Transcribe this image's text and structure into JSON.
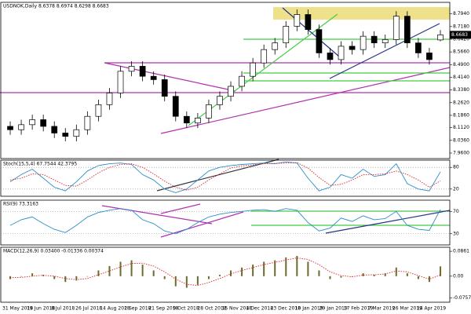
{
  "chart_data": [
    {
      "type": "candlestick",
      "title": "USDNOK,Daily 8.6378 8.6974 8.6298 8.6683",
      "open": [
        8.12,
        8.1,
        8.13,
        8.16,
        8.12,
        8.08,
        8.06,
        8.1,
        8.18,
        8.25,
        8.32,
        8.45,
        8.48,
        8.42,
        8.4,
        8.3,
        8.18,
        8.14,
        8.17,
        8.25,
        8.3,
        8.36,
        8.42,
        8.5,
        8.58,
        8.62,
        8.72,
        8.79,
        8.7,
        8.56,
        8.52,
        8.6,
        8.58,
        8.66,
        8.62,
        8.64,
        8.78,
        8.62,
        8.56,
        8.6378
      ],
      "high": [
        8.15,
        8.16,
        8.19,
        8.19,
        8.15,
        8.11,
        8.13,
        8.21,
        8.28,
        8.35,
        8.48,
        8.51,
        8.51,
        8.45,
        8.43,
        8.33,
        8.21,
        8.2,
        8.28,
        8.33,
        8.39,
        8.45,
        8.53,
        8.61,
        8.65,
        8.75,
        8.82,
        8.82,
        8.73,
        8.59,
        8.63,
        8.63,
        8.69,
        8.69,
        8.67,
        8.81,
        8.81,
        8.65,
        8.59,
        8.6974
      ],
      "low": [
        8.07,
        8.07,
        8.1,
        8.09,
        8.05,
        8.03,
        8.03,
        8.07,
        8.15,
        8.22,
        8.29,
        8.42,
        8.39,
        8.37,
        8.27,
        8.15,
        8.11,
        8.11,
        8.14,
        8.22,
        8.27,
        8.33,
        8.39,
        8.47,
        8.55,
        8.59,
        8.69,
        8.67,
        8.53,
        8.49,
        8.49,
        8.55,
        8.55,
        8.59,
        8.59,
        8.61,
        8.59,
        8.53,
        8.49,
        8.6298
      ],
      "close": [
        8.1,
        8.13,
        8.16,
        8.12,
        8.08,
        8.06,
        8.1,
        8.18,
        8.25,
        8.32,
        8.45,
        8.48,
        8.42,
        8.4,
        8.3,
        8.18,
        8.14,
        8.17,
        8.25,
        8.3,
        8.36,
        8.42,
        8.5,
        8.58,
        8.62,
        8.72,
        8.79,
        8.7,
        8.56,
        8.52,
        8.6,
        8.58,
        8.66,
        8.62,
        8.64,
        8.78,
        8.62,
        8.56,
        8.52,
        8.6683
      ],
      "up_color": "#ffffff",
      "down_color": "#000000",
      "last_price_label": "8.6683",
      "ylim": [
        7.927,
        8.863
      ],
      "yticks": [
        {
          "value": 8.794,
          "label": "8.7940"
        },
        {
          "value": 8.718,
          "label": "8.7180"
        },
        {
          "value": 8.642,
          "label": "8.6420"
        },
        {
          "value": 8.566,
          "label": "8.5660"
        },
        {
          "value": 8.49,
          "label": "8.4900"
        },
        {
          "value": 8.414,
          "label": "8.4140"
        },
        {
          "value": 8.338,
          "label": "8.3380"
        },
        {
          "value": 8.262,
          "label": "8.2620"
        },
        {
          "value": 8.186,
          "label": "8.1860"
        },
        {
          "value": 8.112,
          "label": "8.1120"
        },
        {
          "value": 8.036,
          "label": "8.0360"
        },
        {
          "value": 7.96,
          "label": "7.9600"
        }
      ],
      "grid": false,
      "x_labels": [
        "31 May 2018",
        "19 Jun 2018",
        "8 Jul 2018",
        "26 Jul 2018",
        "14 Aug 2018",
        "2 Sep 2018",
        "21 Sep 2018",
        "9 Oct 2018",
        "28 Oct 2018",
        "15 Nov 2018",
        "4 Dec 2018",
        "23 Dec 2018",
        "10 Jan 2019",
        "29 Jan 2019",
        "17 Feb 2019",
        "7 Mar 2019",
        "26 Mar 2019",
        "14 Apr 2019"
      ]
    },
    {
      "type": "line",
      "title": "Stoch(15,5,4) 67.7544 42.3795",
      "series": [
        {
          "color": "#2a8fc9",
          "style": "solid",
          "values": [
            40,
            60,
            75,
            50,
            25,
            15,
            40,
            70,
            85,
            90,
            92,
            88,
            60,
            45,
            20,
            10,
            20,
            45,
            70,
            80,
            85,
            88,
            90,
            92,
            90,
            95,
            92,
            50,
            15,
            25,
            60,
            50,
            75,
            55,
            60,
            90,
            35,
            20,
            15,
            67.7544
          ]
        },
        {
          "color": "#d22",
          "style": "dotted",
          "values": [
            45,
            50,
            62,
            60,
            45,
            30,
            28,
            45,
            65,
            80,
            88,
            90,
            80,
            62,
            42,
            25,
            17,
            25,
            45,
            62,
            78,
            84,
            87,
            90,
            91,
            92,
            93,
            78,
            52,
            30,
            33,
            45,
            60,
            60,
            62,
            70,
            60,
            45,
            25,
            42.3795
          ]
        }
      ],
      "ylim": [
        0,
        100
      ],
      "yticks": [
        20,
        80
      ],
      "grid": true
    },
    {
      "type": "line",
      "title": "RSI(9) 73.3163",
      "series": [
        {
          "color": "#2a8fc9",
          "style": "solid",
          "values": [
            45,
            55,
            60,
            48,
            38,
            32,
            45,
            60,
            68,
            72,
            75,
            72,
            55,
            48,
            35,
            30,
            38,
            50,
            60,
            65,
            68,
            70,
            72,
            73,
            70,
            75,
            72,
            50,
            35,
            40,
            58,
            52,
            62,
            55,
            57,
            70,
            45,
            38,
            36,
            73.3163
          ]
        }
      ],
      "ylim": [
        10,
        90
      ],
      "yticks": [
        30,
        70
      ],
      "grid": true
    },
    {
      "type": "bar",
      "title": "MACD(12,26,9) 0.03400 -0.01336 0.00374",
      "color": "#6b6b2e",
      "values": [
        -0.01,
        0,
        0.01,
        0.005,
        -0.01,
        -0.02,
        -0.015,
        0,
        0.02,
        0.035,
        0.05,
        0.055,
        0.04,
        0.02,
        -0.01,
        -0.035,
        -0.04,
        -0.03,
        -0.01,
        0.005,
        0.02,
        0.03,
        0.04,
        0.05,
        0.055,
        0.065,
        0.07,
        0.05,
        0.02,
        -0.01,
        -0.005,
        0,
        0.01,
        0.005,
        0.01,
        0.03,
        0.01,
        -0.01,
        -0.02,
        0.034
      ],
      "series": [
        {
          "color": "#d22",
          "style": "dotted",
          "values": [
            -0.005,
            -0.004,
            0,
            0.003,
            0,
            -0.008,
            -0.012,
            -0.008,
            0.005,
            0.018,
            0.032,
            0.044,
            0.045,
            0.035,
            0.015,
            -0.01,
            -0.028,
            -0.032,
            -0.022,
            -0.008,
            0.008,
            0.02,
            0.03,
            0.04,
            0.048,
            0.056,
            0.063,
            0.058,
            0.04,
            0.015,
            0.002,
            -0.002,
            0.004,
            0.005,
            0.008,
            0.018,
            0.015,
            0.002,
            -0.01,
            0.00374
          ]
        }
      ],
      "ylim": [
        -0.09,
        0.1
      ],
      "yticks": [
        0.0861,
        {
          "value": 0,
          "label": "0.00"
        },
        -0.0757
      ],
      "grid": false
    }
  ]
}
